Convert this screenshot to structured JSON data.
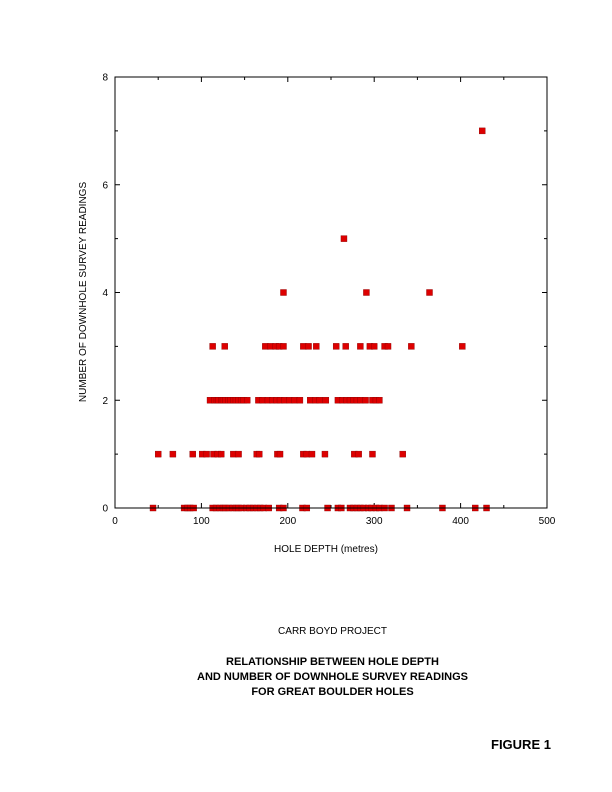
{
  "chart_data": {
    "type": "scatter",
    "xlabel": "HOLE DEPTH (metres)",
    "ylabel": "NUMBER OF DOWNHOLE SURVEY READINGS",
    "xlim": [
      0,
      500
    ],
    "ylim": [
      0,
      8
    ],
    "xticks": [
      "0",
      "100",
      "200",
      "300",
      "400",
      "500"
    ],
    "yticks": [
      "0",
      "2",
      "4",
      "6",
      "8"
    ],
    "grid": false,
    "legend": "none",
    "marker_color": "#dd0000",
    "points": [
      [
        44,
        0
      ],
      [
        80,
        0
      ],
      [
        84,
        0
      ],
      [
        87,
        0
      ],
      [
        91,
        0
      ],
      [
        113,
        0
      ],
      [
        117,
        0
      ],
      [
        121,
        0
      ],
      [
        125,
        0
      ],
      [
        128,
        0
      ],
      [
        132,
        0
      ],
      [
        136,
        0
      ],
      [
        140,
        0
      ],
      [
        143,
        0
      ],
      [
        147,
        0
      ],
      [
        152,
        0
      ],
      [
        156,
        0
      ],
      [
        160,
        0
      ],
      [
        164,
        0
      ],
      [
        168,
        0
      ],
      [
        172,
        0
      ],
      [
        178,
        0
      ],
      [
        190,
        0
      ],
      [
        195,
        0
      ],
      [
        217,
        0
      ],
      [
        222,
        0
      ],
      [
        246,
        0
      ],
      [
        258,
        0
      ],
      [
        262,
        0
      ],
      [
        272,
        0
      ],
      [
        276,
        0
      ],
      [
        280,
        0
      ],
      [
        284,
        0
      ],
      [
        288,
        0
      ],
      [
        293,
        0
      ],
      [
        297,
        0
      ],
      [
        302,
        0
      ],
      [
        306,
        0
      ],
      [
        312,
        0
      ],
      [
        320,
        0
      ],
      [
        338,
        0
      ],
      [
        379,
        0
      ],
      [
        417,
        0
      ],
      [
        430,
        0
      ],
      [
        50,
        1
      ],
      [
        67,
        1
      ],
      [
        90,
        1
      ],
      [
        101,
        1
      ],
      [
        106,
        1
      ],
      [
        114,
        1
      ],
      [
        119,
        1
      ],
      [
        123,
        1
      ],
      [
        137,
        1
      ],
      [
        143,
        1
      ],
      [
        164,
        1
      ],
      [
        167,
        1
      ],
      [
        188,
        1
      ],
      [
        191,
        1
      ],
      [
        218,
        1
      ],
      [
        222,
        1
      ],
      [
        228,
        1
      ],
      [
        243,
        1
      ],
      [
        277,
        1
      ],
      [
        282,
        1
      ],
      [
        298,
        1
      ],
      [
        333,
        1
      ],
      [
        110,
        2
      ],
      [
        115,
        2
      ],
      [
        118,
        2
      ],
      [
        120,
        2
      ],
      [
        123,
        2
      ],
      [
        125,
        2
      ],
      [
        128,
        2
      ],
      [
        131,
        2
      ],
      [
        134,
        2
      ],
      [
        137,
        2
      ],
      [
        140,
        2
      ],
      [
        143,
        2
      ],
      [
        146,
        2
      ],
      [
        149,
        2
      ],
      [
        153,
        2
      ],
      [
        166,
        2
      ],
      [
        171,
        2
      ],
      [
        177,
        2
      ],
      [
        182,
        2
      ],
      [
        187,
        2
      ],
      [
        191,
        2
      ],
      [
        196,
        2
      ],
      [
        202,
        2
      ],
      [
        208,
        2
      ],
      [
        214,
        2
      ],
      [
        226,
        2
      ],
      [
        232,
        2
      ],
      [
        237,
        2
      ],
      [
        244,
        2
      ],
      [
        258,
        2
      ],
      [
        263,
        2
      ],
      [
        268,
        2
      ],
      [
        272,
        2
      ],
      [
        276,
        2
      ],
      [
        280,
        2
      ],
      [
        284,
        2
      ],
      [
        290,
        2
      ],
      [
        298,
        2
      ],
      [
        302,
        2
      ],
      [
        306,
        2
      ],
      [
        113,
        3
      ],
      [
        127,
        3
      ],
      [
        174,
        3
      ],
      [
        180,
        3
      ],
      [
        186,
        3
      ],
      [
        190,
        3
      ],
      [
        195,
        3
      ],
      [
        218,
        3
      ],
      [
        224,
        3
      ],
      [
        233,
        3
      ],
      [
        256,
        3
      ],
      [
        267,
        3
      ],
      [
        284,
        3
      ],
      [
        295,
        3
      ],
      [
        300,
        3
      ],
      [
        312,
        3
      ],
      [
        316,
        3
      ],
      [
        343,
        3
      ],
      [
        402,
        3
      ],
      [
        195,
        4
      ],
      [
        291,
        4
      ],
      [
        364,
        4
      ],
      [
        265,
        5
      ],
      [
        425,
        7
      ]
    ]
  },
  "caption": {
    "project": "CARR BOYD PROJECT",
    "title_lines": [
      "RELATIONSHIP BETWEEN HOLE DEPTH",
      "AND NUMBER OF DOWNHOLE SURVEY READINGS",
      "FOR GREAT BOULDER HOLES"
    ],
    "figure": "FIGURE 1"
  }
}
